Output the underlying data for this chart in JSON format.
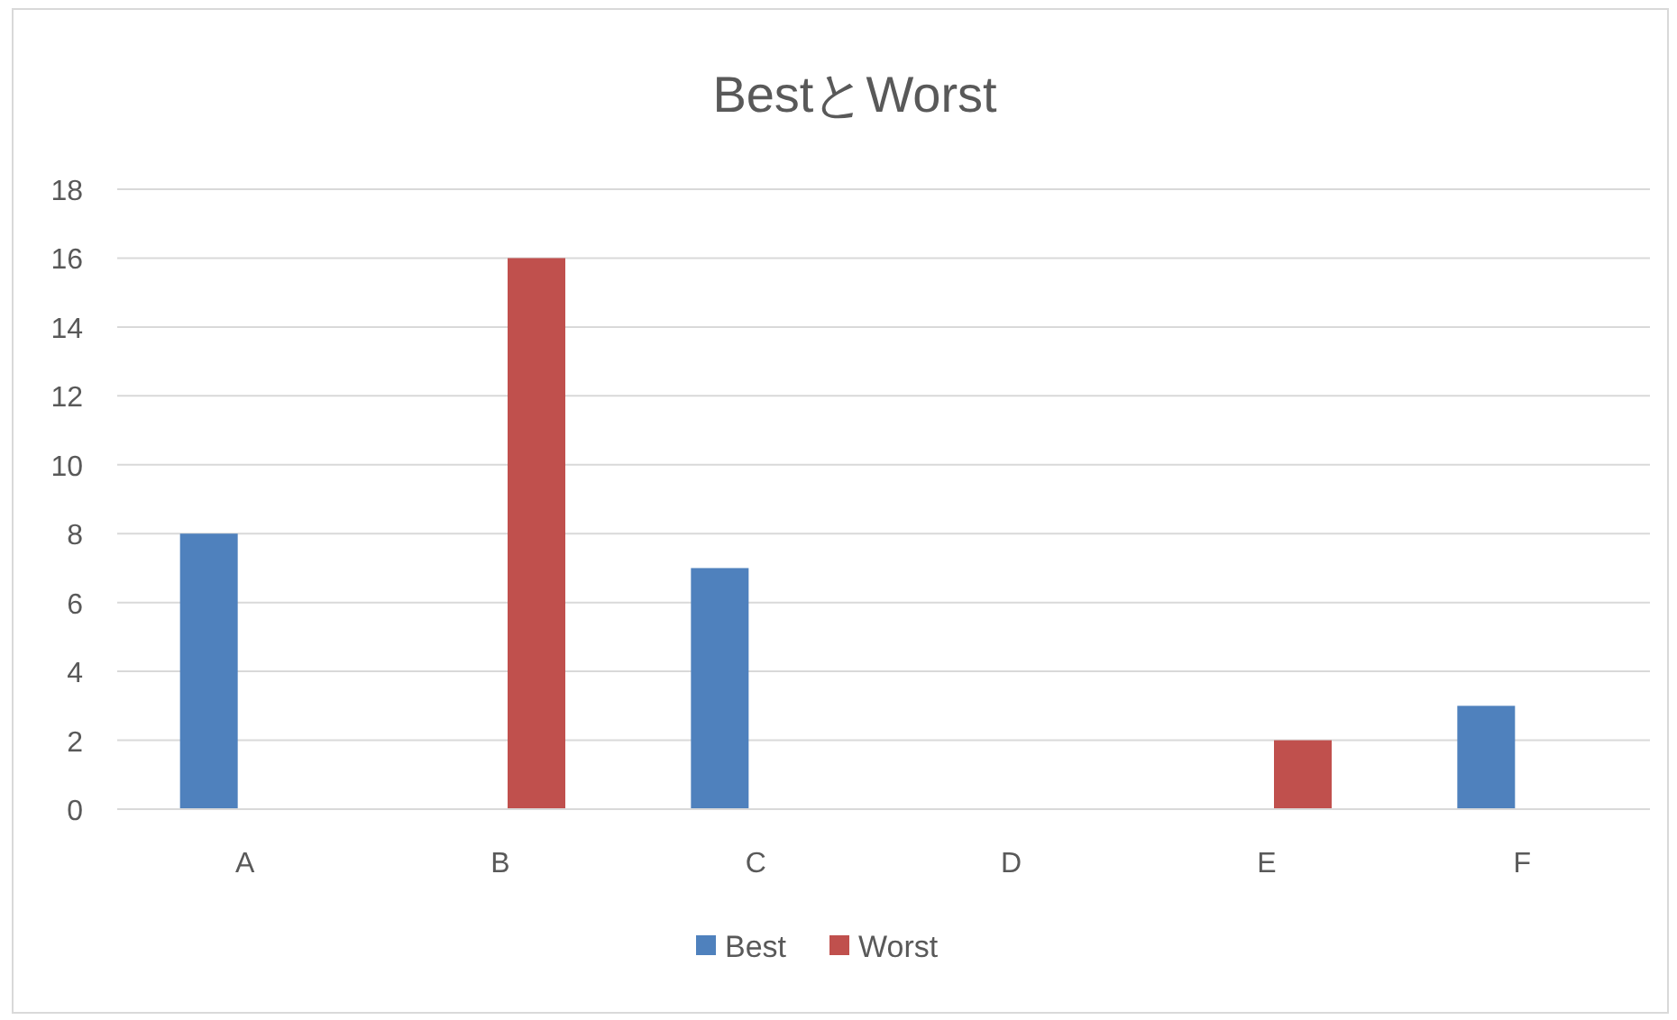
{
  "chart_data": {
    "type": "bar",
    "title": "BestとWorst",
    "categories": [
      "A",
      "B",
      "C",
      "D",
      "E",
      "F"
    ],
    "series": [
      {
        "name": "Best",
        "color": "#4f81bd",
        "values": [
          8,
          0,
          7,
          0,
          0,
          3
        ]
      },
      {
        "name": "Worst",
        "color": "#c0504d",
        "values": [
          0,
          16,
          0,
          0,
          2,
          0
        ]
      }
    ],
    "ylim": [
      0,
      18
    ],
    "yticks": [
      0,
      2,
      4,
      6,
      8,
      10,
      12,
      14,
      16,
      18
    ],
    "grid": "y",
    "legend": "bottom"
  }
}
